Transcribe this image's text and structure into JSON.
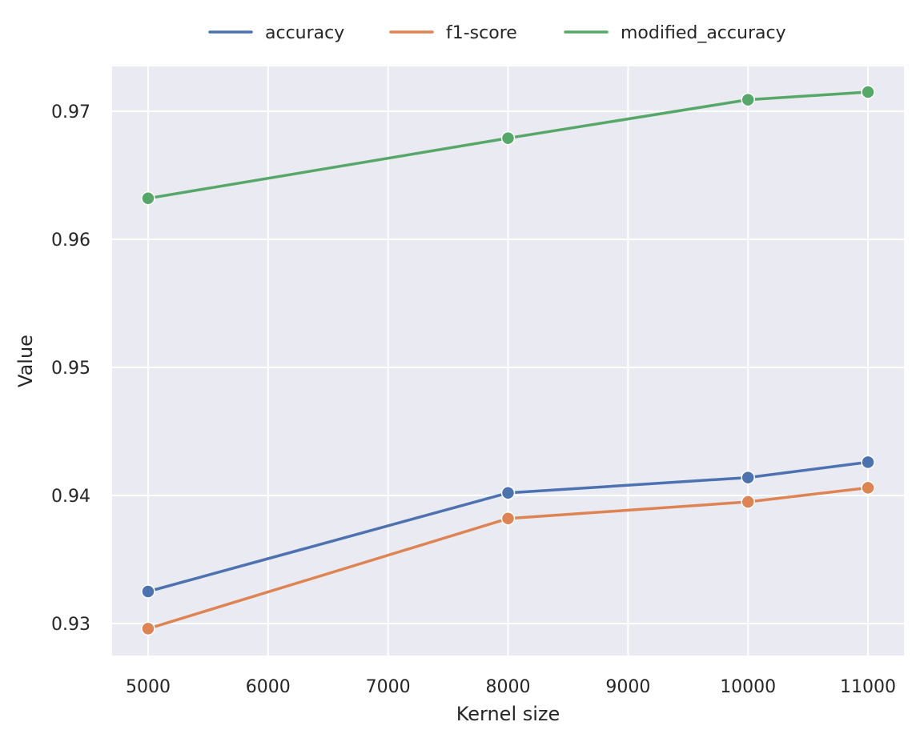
{
  "chart_data": {
    "type": "line",
    "title": "",
    "xlabel": "Kernel size",
    "ylabel": "Value",
    "x": [
      5000,
      8000,
      10000,
      11000
    ],
    "xlim": [
      4700,
      11300
    ],
    "ylim": [
      0.9275,
      0.9735
    ],
    "xticks": [
      5000,
      6000,
      7000,
      8000,
      9000,
      10000,
      11000
    ],
    "yticks": [
      0.93,
      0.94,
      0.95,
      0.96,
      0.97
    ],
    "grid": true,
    "legend_position": "top-center",
    "background_color": "#eaeaf2",
    "grid_color": "#ffffff",
    "series": [
      {
        "name": "accuracy",
        "color": "#4c72b0",
        "values": [
          0.9325,
          0.9402,
          0.9414,
          0.9426
        ]
      },
      {
        "name": "f1-score",
        "color": "#dd8452",
        "values": [
          0.9296,
          0.9382,
          0.9395,
          0.9406
        ]
      },
      {
        "name": "modified_accuracy",
        "color": "#55a868",
        "values": [
          0.9632,
          0.9679,
          0.9709,
          0.9715
        ]
      }
    ]
  }
}
